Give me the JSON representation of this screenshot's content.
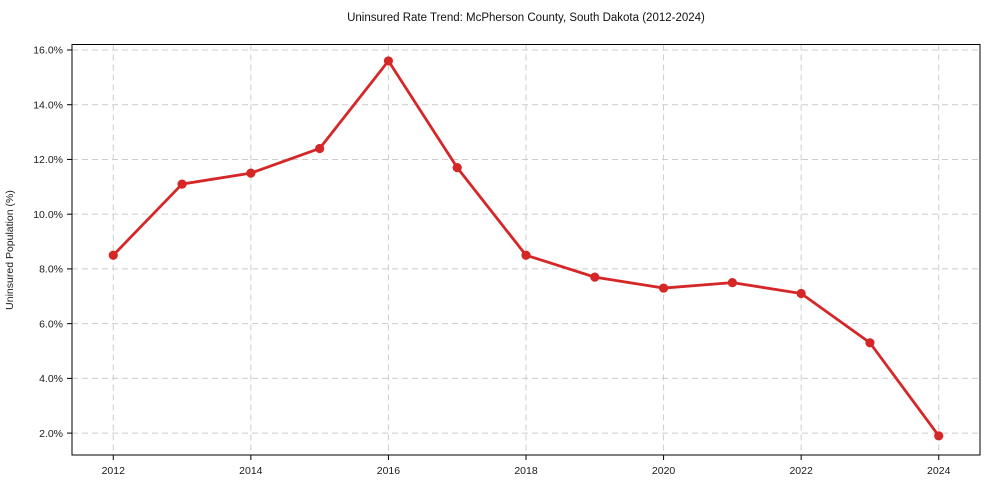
{
  "chart_data": {
    "type": "line",
    "title": "Uninsured Rate Trend: McPherson County, South Dakota (2012-2024)",
    "xlabel": "",
    "ylabel": "Uninsured Population (%)",
    "x": [
      2012,
      2013,
      2014,
      2015,
      2016,
      2017,
      2018,
      2019,
      2020,
      2021,
      2022,
      2023,
      2024
    ],
    "y": [
      8.5,
      11.1,
      11.5,
      12.4,
      15.6,
      11.7,
      8.5,
      7.7,
      7.3,
      7.5,
      7.1,
      5.3,
      1.9
    ],
    "x_ticks": [
      2012,
      2014,
      2016,
      2018,
      2020,
      2022,
      2024
    ],
    "x_tick_labels": [
      "2012",
      "2014",
      "2016",
      "2018",
      "2020",
      "2022",
      "2024"
    ],
    "y_ticks": [
      2,
      4,
      6,
      8,
      10,
      12,
      14,
      16
    ],
    "y_tick_labels": [
      "2.0%",
      "4.0%",
      "6.0%",
      "8.0%",
      "10.0%",
      "12.0%",
      "14.0%",
      "16.0%"
    ],
    "xlim": [
      2011.4,
      2024.6
    ],
    "ylim": [
      1.2,
      16.2
    ],
    "grid": true,
    "legend": false,
    "line_color": "#d62728",
    "marker": "circle"
  }
}
